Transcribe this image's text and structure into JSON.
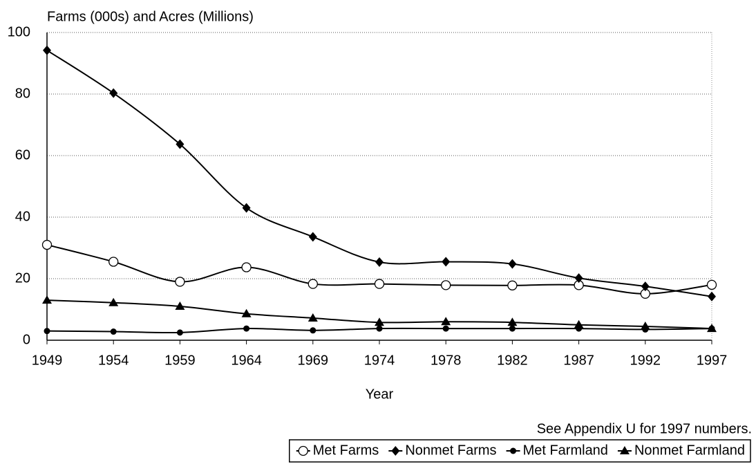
{
  "chart_data": {
    "type": "line",
    "ylabel": "Farms (000s) and Acres (Millions)",
    "xlabel": "Year",
    "annotation": "See Appendix U for 1997 numbers.",
    "categories": [
      "1949",
      "1954",
      "1959",
      "1964",
      "1969",
      "1974",
      "1978",
      "1982",
      "1987",
      "1992",
      "1997"
    ],
    "series": [
      {
        "name": "Met Farms",
        "color": "#000000",
        "marker": "circle-open",
        "values": [
          31,
          25.5,
          19,
          23.7,
          18.3,
          18.3,
          17.9,
          17.8,
          17.9,
          15.1,
          18
        ]
      },
      {
        "name": "Nonmet Farms",
        "color": "#000000",
        "marker": "diamond",
        "values": [
          94.2,
          80.3,
          63.7,
          43,
          33.6,
          25.4,
          25.5,
          24.8,
          20.2,
          17.5,
          14.2
        ]
      },
      {
        "name": "Met Farmland",
        "color": "#000000",
        "marker": "circle",
        "values": [
          3,
          2.8,
          2.5,
          3.8,
          3.2,
          3.8,
          3.8,
          3.8,
          3.8,
          3.5,
          3.8
        ]
      },
      {
        "name": "Nonmet Farmland",
        "color": "#000000",
        "marker": "triangle",
        "values": [
          13,
          12.2,
          11,
          8.6,
          7.2,
          5.8,
          6,
          5.8,
          5,
          4.5,
          3.8
        ]
      }
    ],
    "ylim": [
      0,
      100
    ],
    "yticks": [
      0,
      20,
      40,
      60,
      80,
      100
    ],
    "grid": true,
    "smooth": true
  }
}
